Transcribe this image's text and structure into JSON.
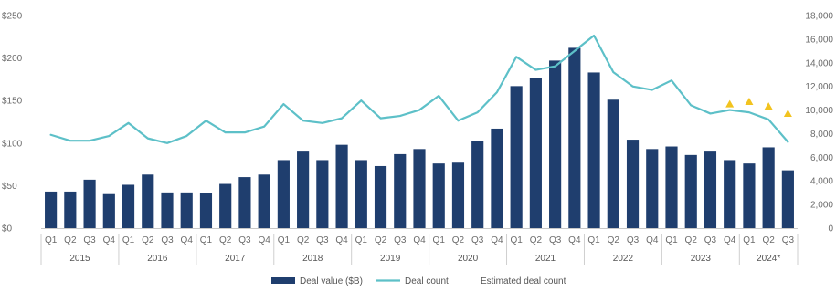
{
  "chart_data": {
    "type": "bar",
    "categories": [
      "Q1",
      "Q2",
      "Q3",
      "Q4",
      "Q1",
      "Q2",
      "Q3",
      "Q4",
      "Q1",
      "Q2",
      "Q3",
      "Q4",
      "Q1",
      "Q2",
      "Q3",
      "Q4",
      "Q1",
      "Q2",
      "Q3",
      "Q4",
      "Q1",
      "Q2",
      "Q3",
      "Q4",
      "Q1",
      "Q2",
      "Q3",
      "Q4",
      "Q1",
      "Q2",
      "Q3",
      "Q4",
      "Q1",
      "Q2",
      "Q3",
      "Q4",
      "Q1",
      "Q2",
      "Q3"
    ],
    "years": [
      {
        "label": "2015",
        "start": 0,
        "end": 3
      },
      {
        "label": "2016",
        "start": 4,
        "end": 7
      },
      {
        "label": "2017",
        "start": 8,
        "end": 11
      },
      {
        "label": "2018",
        "start": 12,
        "end": 15
      },
      {
        "label": "2019",
        "start": 16,
        "end": 19
      },
      {
        "label": "2020",
        "start": 20,
        "end": 23
      },
      {
        "label": "2021",
        "start": 24,
        "end": 27
      },
      {
        "label": "2022",
        "start": 28,
        "end": 31
      },
      {
        "label": "2023",
        "start": 32,
        "end": 35
      },
      {
        "label": "2024*",
        "start": 36,
        "end": 38
      }
    ],
    "series": [
      {
        "name": "Deal value ($B)",
        "kind": "bar",
        "axis": "left",
        "color": "#1f3e6e",
        "values": [
          43,
          43,
          57,
          40,
          51,
          63,
          42,
          42,
          41,
          52,
          60,
          63,
          80,
          90,
          80,
          98,
          80,
          73,
          87,
          93,
          76,
          77,
          103,
          117,
          167,
          176,
          197,
          212,
          183,
          151,
          104,
          93,
          96,
          86,
          90,
          80,
          76,
          95,
          68
        ]
      },
      {
        "name": "Deal count",
        "kind": "line",
        "axis": "right",
        "color": "#5dc0c8",
        "values": [
          7900,
          7400,
          7400,
          7800,
          8900,
          7600,
          7200,
          7800,
          9100,
          8100,
          8100,
          8600,
          10500,
          9100,
          8900,
          9300,
          10800,
          9300,
          9500,
          10000,
          11200,
          9100,
          9800,
          11500,
          14500,
          13400,
          13700,
          15000,
          16300,
          13200,
          12000,
          11700,
          12500,
          10400,
          9700,
          10000,
          9800,
          9200,
          7300
        ]
      },
      {
        "name": "Estimated deal count",
        "kind": "marker",
        "axis": "right",
        "color": "#f2c31f",
        "values": [
          null,
          null,
          null,
          null,
          null,
          null,
          null,
          null,
          null,
          null,
          null,
          null,
          null,
          null,
          null,
          null,
          null,
          null,
          null,
          null,
          null,
          null,
          null,
          null,
          null,
          null,
          null,
          null,
          null,
          null,
          null,
          null,
          null,
          null,
          null,
          10500,
          10700,
          10300,
          9700
        ]
      }
    ],
    "y_left": {
      "ticks": [
        "$0",
        "$50",
        "$100",
        "$150",
        "$200",
        "$250"
      ],
      "values": [
        0,
        50,
        100,
        150,
        200,
        250
      ],
      "range": [
        0,
        250
      ]
    },
    "y_right": {
      "ticks": [
        "0",
        "2,000",
        "4,000",
        "6,000",
        "8,000",
        "10,000",
        "12,000",
        "14,000",
        "16,000",
        "18,000"
      ],
      "values": [
        0,
        2000,
        4000,
        6000,
        8000,
        10000,
        12000,
        14000,
        16000,
        18000
      ],
      "range": [
        0,
        18000
      ]
    },
    "grid": false,
    "legend": {
      "placement": "bottom-center",
      "items": [
        "Deal value ($B)",
        "Deal count",
        "Estimated deal count"
      ]
    }
  }
}
